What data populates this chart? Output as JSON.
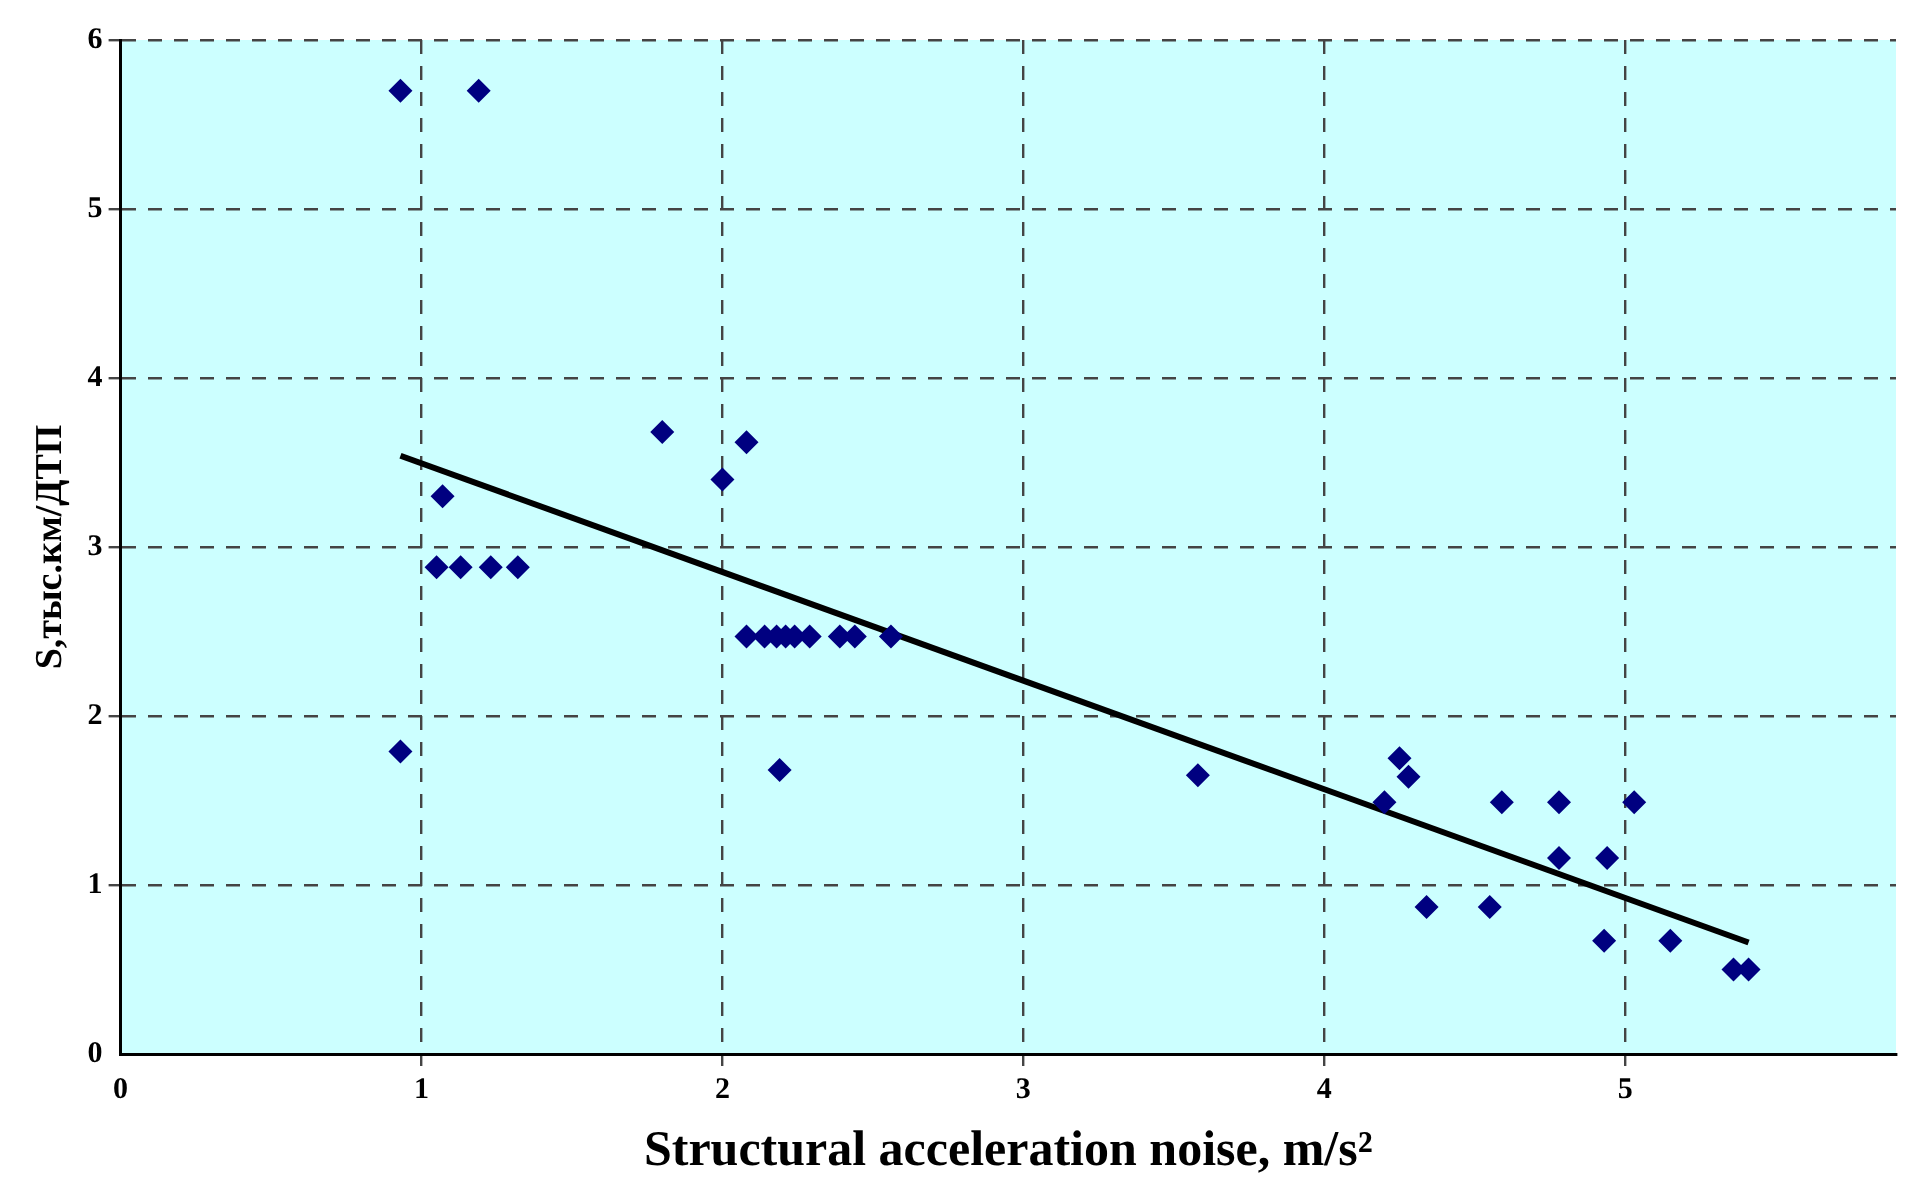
{
  "chart_data": {
    "type": "scatter",
    "xlabel": "Structural acceleration noise, m/s²",
    "ylabel": "S,тыс.км/ДТП",
    "xlim": [
      0,
      5.9
    ],
    "xticks": [
      0,
      1,
      2,
      3,
      4,
      5
    ],
    "ylim": [
      0,
      6
    ],
    "yticks": [
      0,
      1,
      2,
      3,
      4,
      5,
      6
    ],
    "grid": true,
    "legend": false,
    "marker": "diamond",
    "series": [
      {
        "color": "#000080",
        "x": [
          0.93,
          1.19,
          0.93,
          1.07,
          1.05,
          1.13,
          1.23,
          1.32,
          1.8,
          2.0,
          2.08,
          2.19,
          2.08,
          2.14,
          2.18,
          2.21,
          2.24,
          2.29,
          2.39,
          2.44,
          2.56,
          3.58,
          4.25,
          4.28,
          4.2,
          4.34,
          4.55,
          4.59,
          4.78,
          4.78,
          4.94,
          5.03,
          4.93,
          5.15,
          5.36,
          5.41
        ],
        "values": [
          5.7,
          5.7,
          1.79,
          3.3,
          2.88,
          2.88,
          2.88,
          2.88,
          3.68,
          3.4,
          3.62,
          1.68,
          2.47,
          2.47,
          2.47,
          2.47,
          2.47,
          2.47,
          2.47,
          2.47,
          2.47,
          1.65,
          1.75,
          1.64,
          1.49,
          0.87,
          0.87,
          1.49,
          1.49,
          1.16,
          1.16,
          1.49,
          0.67,
          0.67,
          0.5,
          0.5
        ]
      },
      {
        "type": "line",
        "color": "#000000",
        "x": [
          0.93,
          5.41
        ],
        "values": [
          3.54,
          0.66
        ],
        "line_style": "solid",
        "marker": "none"
      }
    ]
  }
}
